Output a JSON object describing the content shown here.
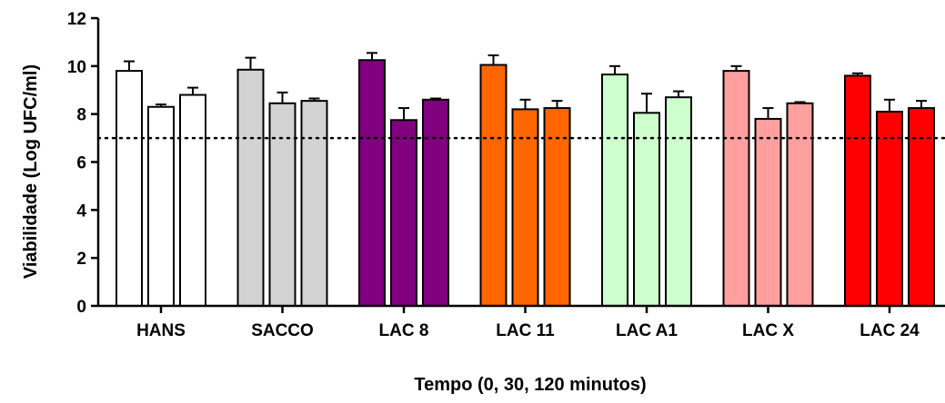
{
  "chart_data": {
    "type": "bar",
    "title": "",
    "xlabel": "Tempo (0, 30, 120 minutos)",
    "ylabel": "Viabilidade (Log UFC/ml)",
    "ylim": [
      0,
      12
    ],
    "yticks": [
      "0",
      "2",
      "4",
      "6",
      "8",
      "10",
      "12"
    ],
    "reference_line": 7,
    "grid": false,
    "categories": [
      "HANS",
      "SACCO",
      "LAC 8",
      "LAC 11",
      "LAC A1",
      "LAC X",
      "LAC 24"
    ],
    "colors": [
      "#ffffff",
      "#d3d3d3",
      "#800080",
      "#ff6600",
      "#ccffcc",
      "#ff9f9f",
      "#ff0000"
    ],
    "values": [
      [
        9.8,
        8.3,
        8.8
      ],
      [
        9.85,
        8.45,
        8.55
      ],
      [
        10.25,
        7.75,
        8.6
      ],
      [
        10.05,
        8.2,
        8.25
      ],
      [
        9.65,
        8.05,
        8.7
      ],
      [
        9.8,
        7.8,
        8.45
      ],
      [
        9.6,
        8.1,
        8.25
      ]
    ],
    "errors": [
      [
        0.4,
        0.1,
        0.3
      ],
      [
        0.5,
        0.45,
        0.1
      ],
      [
        0.3,
        0.5,
        0.05
      ],
      [
        0.4,
        0.4,
        0.3
      ],
      [
        0.35,
        0.8,
        0.25
      ],
      [
        0.2,
        0.45,
        0.05
      ],
      [
        0.1,
        0.5,
        0.3
      ]
    ]
  }
}
